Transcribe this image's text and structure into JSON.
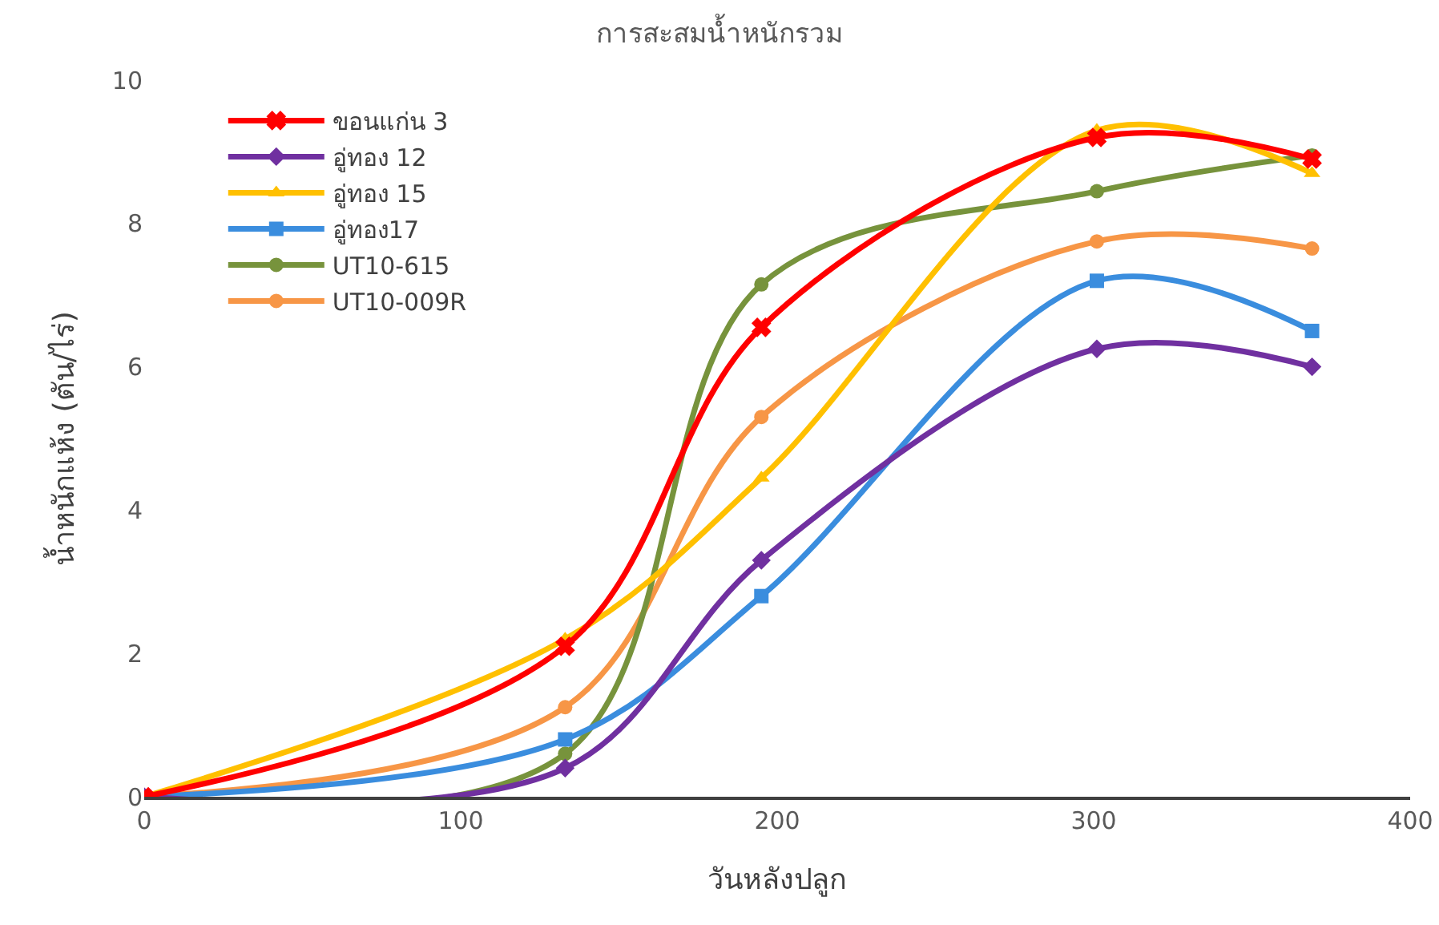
{
  "chart_data": {
    "type": "line",
    "title": "การสะสมน้ำหนักรวม",
    "xlabel": "วันหลังปลูก",
    "ylabel": "น้ำหนักแห้ง (ตัน/ไร่)",
    "x": [
      0,
      133,
      195,
      301,
      369
    ],
    "series": [
      {
        "name": "ขอนแก่น 3",
        "color": "#ff0000",
        "marker": "cross",
        "values": [
          0,
          2.1,
          6.55,
          9.2,
          8.9
        ]
      },
      {
        "name": "อู่ทอง 12",
        "color": "#7030a0",
        "marker": "diamond",
        "values": [
          0,
          0.4,
          3.3,
          6.25,
          6.0
        ]
      },
      {
        "name": "อู่ทอง 15",
        "color": "#ffc000",
        "marker": "triangle",
        "values": [
          0,
          2.2,
          4.45,
          9.3,
          8.7
        ]
      },
      {
        "name": "อู่ทอง17",
        "color": "#3a8dde",
        "marker": "square",
        "values": [
          0,
          0.8,
          2.8,
          7.2,
          6.5
        ]
      },
      {
        "name": "UT10-615",
        "color": "#77933c",
        "marker": "circle",
        "values": [
          0,
          0.6,
          7.15,
          8.45,
          8.95
        ]
      },
      {
        "name": "UT10-009R",
        "color": "#f79646",
        "marker": "circle",
        "values": [
          0,
          1.25,
          5.3,
          7.75,
          7.65
        ]
      }
    ],
    "xlim": [
      0,
      400
    ],
    "xticks": [
      0,
      100,
      200,
      300,
      400
    ],
    "ylim": [
      0,
      10
    ],
    "yticks": [
      0,
      2,
      4,
      6,
      8,
      10
    ],
    "grid": false,
    "legend": "top left",
    "line_style": "solid"
  }
}
